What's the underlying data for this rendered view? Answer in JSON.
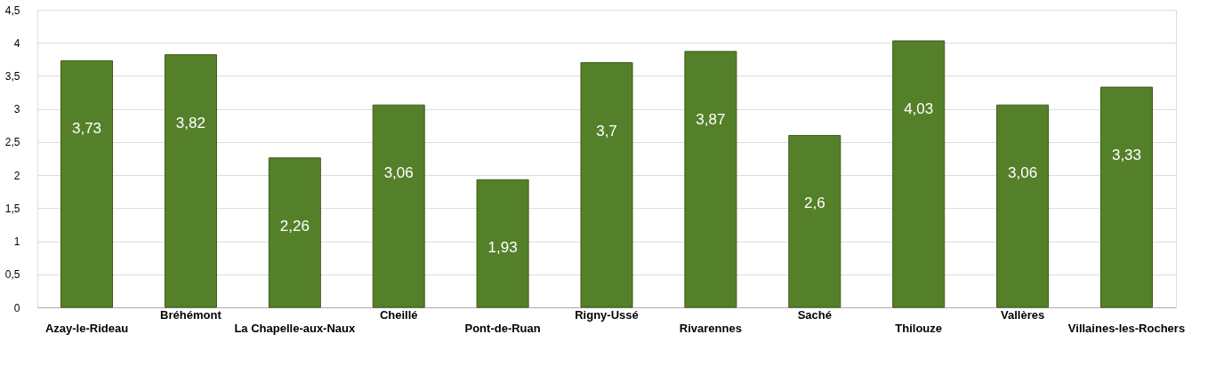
{
  "chart_data": {
    "type": "bar",
    "categories": [
      "Azay-le-Rideau",
      "Bréhémont",
      "La Chapelle-aux-Naux",
      "Cheillé",
      "Pont-de-Ruan",
      "Rigny-Ussé",
      "Rivarennes",
      "Saché",
      "Thilouze",
      "Vallères",
      "Villaines-les-Rochers"
    ],
    "values": [
      3.73,
      3.82,
      2.26,
      3.06,
      1.93,
      3.7,
      3.87,
      2.6,
      4.03,
      3.06,
      3.33
    ],
    "value_labels": [
      "3,73",
      "3,82",
      "2,26",
      "3,06",
      "1,93",
      "3,7",
      "3,87",
      "2,6",
      "4,03",
      "3,06",
      "3,33"
    ],
    "color": "#55802a",
    "ylim": [
      0,
      4.5
    ],
    "yticks": [
      0,
      {
        "value": 0.5,
        "label": "0,5"
      },
      1,
      {
        "value": 1.5,
        "label": "1,5"
      },
      2,
      {
        "value": 2.5,
        "label": "2,5"
      },
      3,
      {
        "value": 3.5,
        "label": "3,5"
      },
      4,
      {
        "value": 4.5,
        "label": "4,5"
      }
    ],
    "grid": "y"
  }
}
